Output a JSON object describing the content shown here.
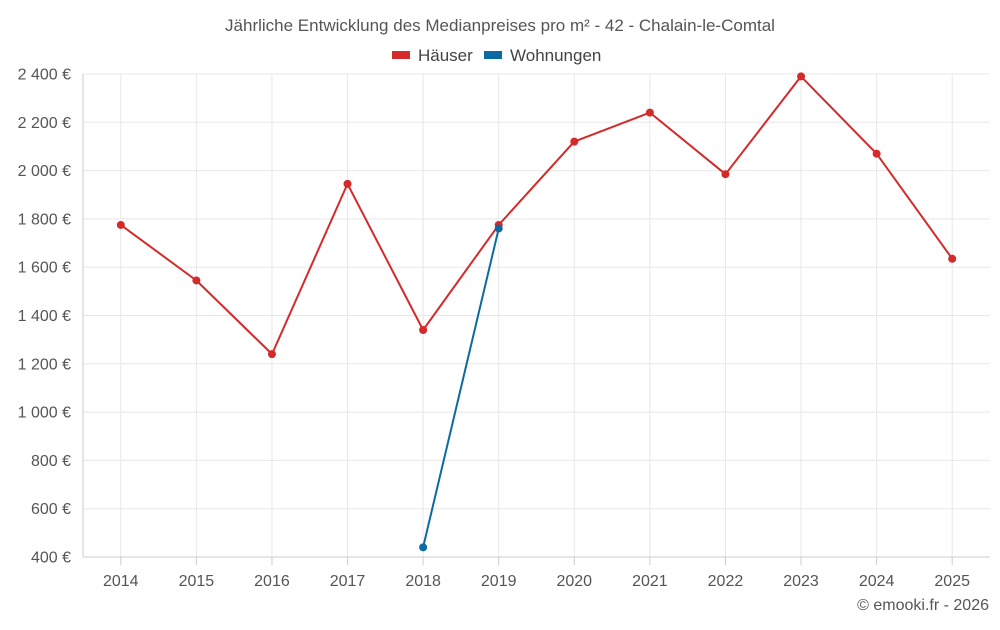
{
  "chart_data": {
    "type": "line",
    "title": "Jährliche Entwicklung des Medianpreises pro m² - 42 - Chalain-le-Comtal",
    "categories": [
      "2014",
      "2015",
      "2016",
      "2017",
      "2018",
      "2019",
      "2020",
      "2021",
      "2022",
      "2023",
      "2024",
      "2025"
    ],
    "series": [
      {
        "name": "Häuser",
        "color": "#d42a2a",
        "values": [
          1775,
          1545,
          1240,
          1945,
          1340,
          1775,
          2120,
          2240,
          1985,
          2390,
          2070,
          1635
        ]
      },
      {
        "name": "Wohnungen",
        "color": "#0a6aa1",
        "values": [
          null,
          null,
          null,
          null,
          440,
          1760,
          null,
          null,
          null,
          null,
          null,
          null
        ]
      }
    ],
    "ylim": [
      400,
      2400
    ],
    "yticks": [
      {
        "value": 2400,
        "label": "2 400 €"
      },
      {
        "value": 2200,
        "label": "2 200 €"
      },
      {
        "value": 2000,
        "label": "2 000 €"
      },
      {
        "value": 1800,
        "label": "1 800 €"
      },
      {
        "value": 1600,
        "label": "1 600 €"
      },
      {
        "value": 1400,
        "label": "1 400 €"
      },
      {
        "value": 1200,
        "label": "1 200 €"
      },
      {
        "value": 1000,
        "label": "1 000 €"
      },
      {
        "value": 800,
        "label": "800 €"
      },
      {
        "value": 600,
        "label": "600 €"
      },
      {
        "value": 400,
        "label": "400 €"
      }
    ],
    "grid": true,
    "legend_position": "top-center",
    "credit": "© emooki.fr - 2026"
  }
}
